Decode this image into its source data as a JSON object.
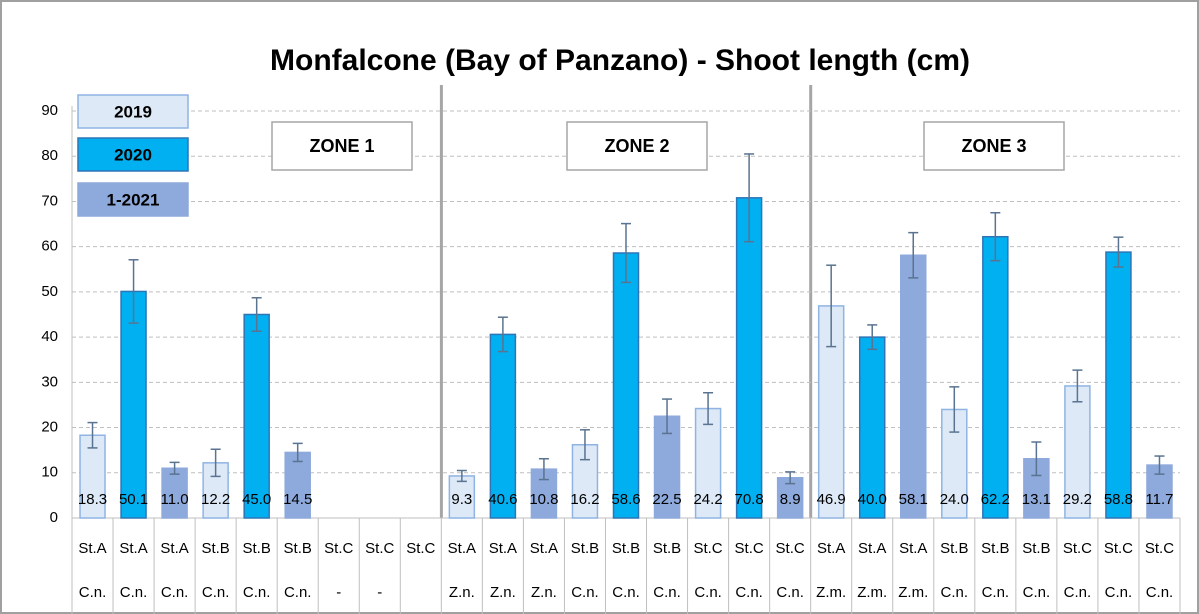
{
  "chart_data": {
    "type": "bar",
    "title": "Monfalcone (Bay of Panzano) - Shoot length (cm)",
    "categories": [
      "St.A",
      "St.A",
      "St.A",
      "St.B",
      "St.B",
      "St.B",
      "St.C",
      "St.C",
      "St.C",
      "St.A",
      "St.A",
      "St.A",
      "St.B",
      "St.B",
      "St.B",
      "St.C",
      "St.C",
      "St.C",
      "St.A",
      "St.A",
      "St.A",
      "St.B",
      "St.B",
      "St.B",
      "St.C",
      "St.C",
      "St.C"
    ],
    "sub_categories": [
      "C.n.",
      "C.n.",
      "C.n.",
      "C.n.",
      "C.n.",
      "C.n.",
      "-",
      "-",
      null,
      "Z.n.",
      "Z.n.",
      "Z.n.",
      "C.n.",
      "C.n.",
      "C.n.",
      "C.n.",
      "C.n.",
      "C.n.",
      "Z.m.",
      "Z.m.",
      "Z.m.",
      "C.n.",
      "C.n.",
      "C.n.",
      "C.n.",
      "C.n.",
      "C.n."
    ],
    "series": [
      {
        "name": "2019",
        "color": "#dde9f6",
        "values": [
          18.3,
          null,
          null,
          12.2,
          null,
          null,
          null,
          null,
          null,
          9.3,
          null,
          null,
          16.2,
          null,
          null,
          24.2,
          null,
          null,
          46.9,
          null,
          null,
          24.0,
          null,
          null,
          29.2,
          null,
          null
        ],
        "value_labels": [
          "18.3",
          null,
          null,
          "12.2",
          null,
          null,
          null,
          null,
          null,
          "9.3",
          null,
          null,
          "16.2",
          null,
          null,
          "24.2",
          null,
          null,
          "46.9",
          null,
          null,
          "24.0",
          null,
          null,
          "29.2",
          null,
          null
        ],
        "errors": [
          2.8,
          null,
          null,
          3,
          null,
          null,
          null,
          null,
          null,
          1.2,
          null,
          null,
          3.3,
          null,
          null,
          3.5,
          null,
          null,
          9,
          null,
          null,
          5,
          null,
          null,
          3.5,
          null,
          null
        ]
      },
      {
        "name": "2020",
        "color": "#00b0f0",
        "values": [
          null,
          50.1,
          null,
          null,
          45.0,
          null,
          null,
          null,
          null,
          null,
          40.6,
          null,
          null,
          58.6,
          null,
          null,
          70.8,
          null,
          null,
          40.0,
          null,
          null,
          62.2,
          null,
          null,
          58.8,
          null
        ],
        "value_labels": [
          null,
          "50.1",
          null,
          null,
          "45.0",
          null,
          null,
          null,
          null,
          null,
          "40.6",
          null,
          null,
          "58.6",
          null,
          null,
          "70.8",
          null,
          null,
          "40.0",
          null,
          null,
          "62.2",
          null,
          null,
          "58.8",
          null
        ],
        "errors": [
          null,
          7,
          null,
          null,
          3.7,
          null,
          null,
          null,
          null,
          null,
          3.8,
          null,
          null,
          6.5,
          null,
          null,
          9.7,
          null,
          null,
          2.7,
          null,
          null,
          5.3,
          null,
          null,
          3.3,
          null
        ]
      },
      {
        "name": "1-2021",
        "color": "#8ea9db",
        "values": [
          null,
          null,
          11.0,
          null,
          null,
          14.5,
          null,
          null,
          null,
          null,
          null,
          10.8,
          null,
          null,
          22.5,
          null,
          null,
          8.9,
          null,
          null,
          58.1,
          null,
          null,
          13.1,
          null,
          null,
          11.7
        ],
        "value_labels": [
          null,
          null,
          "11.0",
          null,
          null,
          "14.5",
          null,
          null,
          null,
          null,
          null,
          "10.8",
          null,
          null,
          "22.5",
          null,
          null,
          "8.9",
          null,
          null,
          "58.1",
          null,
          null,
          "13.1",
          null,
          null,
          "11.7"
        ],
        "errors": [
          null,
          null,
          1.3,
          null,
          null,
          2,
          null,
          null,
          null,
          null,
          null,
          2.3,
          null,
          null,
          3.8,
          null,
          null,
          1.3,
          null,
          null,
          5,
          null,
          null,
          3.7,
          null,
          null,
          2
        ]
      }
    ],
    "annotations": [
      "ZONE 1",
      "ZONE 2",
      "ZONE 3"
    ],
    "ylim": [
      0,
      90
    ],
    "yticks": [
      0,
      10,
      20,
      30,
      40,
      50,
      60,
      70,
      80,
      90
    ],
    "grid": true
  }
}
